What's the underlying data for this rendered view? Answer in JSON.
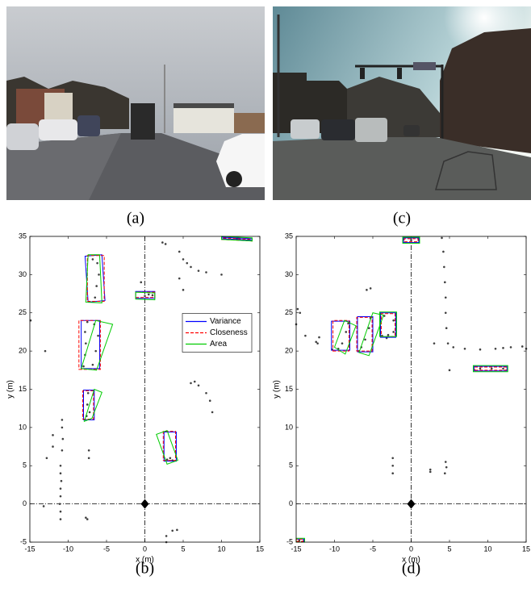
{
  "images": [
    {
      "caption": "(a)"
    },
    {
      "caption": "(c)"
    }
  ],
  "chart_data": [
    {
      "type": "scatter",
      "caption": "(b)",
      "xlabel": "x (m)",
      "ylabel": "y (m)",
      "xlim": [
        -15,
        15
      ],
      "ylim": [
        -5,
        35
      ],
      "xticks": [
        -15,
        -10,
        -5,
        0,
        5,
        10,
        15
      ],
      "yticks": [
        -5,
        0,
        5,
        10,
        15,
        20,
        25,
        30,
        35
      ],
      "legend": "center right",
      "points": {
        "color": "#404040",
        "x": [
          -11,
          -11,
          -11.1,
          -11,
          -11,
          -10.9,
          -11,
          -11,
          -10.8,
          -10.7,
          -10.8,
          -10.8,
          -13.2,
          -12.8,
          -12,
          -12,
          -7.3,
          -7.3,
          -7.5,
          -7.7,
          -7.6,
          -7.5,
          -7.4,
          -7.2,
          -8,
          -7.8,
          -7.7,
          -7.8,
          -7.5,
          -6.8,
          -6.4,
          -6.1,
          -6.6,
          -13,
          -14.9,
          -6.5,
          -6.3,
          -6,
          -6.2,
          -6.8,
          0,
          0.5,
          1,
          -0.5,
          2.3,
          2.7,
          4.5,
          5,
          5.5,
          6,
          7,
          8,
          4.5,
          5,
          6,
          6.5,
          7,
          8,
          8.5,
          8.8,
          2.9,
          3.3,
          3.6,
          2.8,
          2.8,
          3.6,
          4.2,
          10.5,
          12,
          13.5,
          10
        ],
        "y": [
          -2,
          -1,
          0,
          1,
          2,
          3,
          4,
          5,
          7,
          8.5,
          10,
          11,
          -0.3,
          6,
          7.5,
          9,
          6,
          7,
          -2,
          -1.8,
          11.5,
          13,
          14.5,
          12,
          18,
          19.5,
          21,
          22.5,
          23.8,
          18.2,
          20,
          22,
          23.5,
          20,
          24,
          27,
          28.5,
          30,
          31.5,
          32,
          27.2,
          27.4,
          27.3,
          29,
          34.2,
          34,
          33,
          32,
          31.5,
          31,
          30.5,
          30.3,
          29.5,
          28,
          15.8,
          16,
          15.5,
          14.5,
          13.5,
          12,
          5.8,
          6,
          5.7,
          -4.2,
          -5,
          -3.5,
          -3.4,
          34.8,
          34.7,
          34.6,
          30
        ]
      },
      "series": [
        {
          "name": "Variance",
          "color": "#0000ff",
          "dash": false,
          "boxes": [
            {
              "x": [
                -7.4,
                -5.2,
                -5.6,
                -7.8
              ],
              "y": [
                26.4,
                26.6,
                32.6,
                32.4
              ]
            },
            {
              "x": [
                -8.3,
                -5.9,
                -5.9,
                -8.3
              ],
              "y": [
                17.7,
                17.7,
                24,
                24
              ]
            },
            {
              "x": [
                -8,
                -6.6,
                -6.6,
                -8
              ],
              "y": [
                11,
                11,
                14.9,
                14.9
              ]
            },
            {
              "x": [
                -1.2,
                1.3,
                1.3,
                -1.2
              ],
              "y": [
                26.9,
                26.9,
                27.8,
                27.8
              ]
            },
            {
              "x": [
                2.5,
                4.1,
                4.1,
                2.5
              ],
              "y": [
                5.6,
                5.6,
                9.4,
                9.4
              ]
            },
            {
              "x": [
                10,
                14,
                14,
                10
              ],
              "y": [
                34.7,
                34.5,
                34.7,
                34.9
              ]
            }
          ]
        },
        {
          "name": "Closeness",
          "color": "#ff0000",
          "dash": true,
          "boxes": [
            {
              "x": [
                -7.5,
                -5.3,
                -5.3,
                -7.5
              ],
              "y": [
                26.5,
                26.5,
                32.5,
                32.5
              ]
            },
            {
              "x": [
                -8.6,
                -5.8,
                -5.8,
                -8.6
              ],
              "y": [
                17.6,
                17.6,
                24,
                24
              ]
            },
            {
              "x": [
                -8.1,
                -6.7,
                -6.7,
                -8.1
              ],
              "y": [
                11.1,
                11.1,
                14.8,
                14.8
              ]
            },
            {
              "x": [
                -1.2,
                1.3,
                1.3,
                -1.2
              ],
              "y": [
                27,
                27,
                27.7,
                27.7
              ]
            },
            {
              "x": [
                2.4,
                4,
                4,
                2.4
              ],
              "y": [
                5.7,
                5.7,
                9.5,
                9.5
              ]
            },
            {
              "x": [
                10,
                14,
                14,
                10
              ],
              "y": [
                34.6,
                34.4,
                34.6,
                34.8
              ]
            }
          ]
        },
        {
          "name": "Area",
          "color": "#00cc00",
          "dash": false,
          "boxes": [
            {
              "x": [
                -7.7,
                -5.6,
                -5.9,
                -7.4
              ],
              "y": [
                26.4,
                26.3,
                32.6,
                32.6
              ]
            },
            {
              "x": [
                -8.3,
                -6.3,
                -4.2,
                -6.4
              ],
              "y": [
                17.7,
                17.5,
                23.5,
                24
              ]
            },
            {
              "x": [
                -7.9,
                -6.9,
                -5.6,
                -6.6
              ],
              "y": [
                10.8,
                11.2,
                14.6,
                15
              ]
            },
            {
              "x": [
                -1.2,
                1.3,
                1.3,
                -1.2
              ],
              "y": [
                26.8,
                26.7,
                27.6,
                27.7
              ]
            },
            {
              "x": [
                1.5,
                2.9,
                4.3,
                2.9
              ],
              "y": [
                9.1,
                5.2,
                5.7,
                9.6
              ]
            },
            {
              "x": [
                10,
                14,
                14,
                10
              ],
              "y": [
                34.6,
                34.4,
                34.8,
                35
              ]
            }
          ]
        }
      ]
    },
    {
      "type": "scatter",
      "caption": "(d)",
      "xlabel": "x (m)",
      "ylabel": "y (m)",
      "xlim": [
        -15,
        15
      ],
      "ylim": [
        -5,
        35
      ],
      "xticks": [
        -15,
        -10,
        -5,
        0,
        5,
        10,
        15
      ],
      "yticks": [
        -5,
        0,
        5,
        10,
        15,
        20,
        25,
        30,
        35
      ],
      "points": {
        "color": "#404040",
        "x": [
          -14.8,
          -14.5,
          -15,
          -13.8,
          -12.4,
          -12,
          -12.2,
          -10.3,
          -9.5,
          -9,
          -8.5,
          -8.2,
          -6.8,
          -6.5,
          -6,
          -5.5,
          -5.3,
          -3.8,
          -3,
          -2.3,
          -2.3,
          -3.5,
          -5.8,
          -5.3,
          -3.2,
          4,
          4.2,
          4.3,
          4.4,
          4.5,
          4.5,
          4.6,
          4.8,
          5.5,
          7,
          9,
          11,
          12,
          13,
          14.5,
          15,
          3,
          5,
          9,
          10.5,
          12,
          -2.4,
          -2.4,
          -2.4,
          2.5,
          2.5,
          4.4,
          4.6,
          4.5,
          0,
          -14.6
        ],
        "y": [
          25.5,
          25,
          23.5,
          22,
          21.2,
          21.8,
          21,
          20.2,
          20.3,
          21,
          22.5,
          23.6,
          20,
          20.5,
          21.5,
          23,
          24.3,
          22,
          22.1,
          22.5,
          24,
          24.6,
          28,
          28.2,
          21.7,
          34.8,
          33,
          31,
          29,
          27,
          25,
          23,
          21,
          20.5,
          20.3,
          20.2,
          20.3,
          20.4,
          20.5,
          20.6,
          20.3,
          21,
          17.5,
          17.7,
          17.7,
          17.7,
          4,
          5,
          6,
          4.2,
          4.5,
          4,
          4.8,
          5.5,
          34.5,
          -4.8
        ]
      },
      "series": [
        {
          "color": "#0000ff",
          "dash": false,
          "boxes": [
            {
              "x": [
                -10.4,
                -8,
                -8,
                -10.4
              ],
              "y": [
                20.1,
                20.1,
                23.9,
                23.9
              ]
            },
            {
              "x": [
                -7,
                -5,
                -5,
                -7
              ],
              "y": [
                19.9,
                19.9,
                24.5,
                24.5
              ]
            },
            {
              "x": [
                -4,
                -2,
                -2,
                -4
              ],
              "y": [
                21.8,
                21.8,
                25,
                25
              ]
            },
            {
              "x": [
                8.2,
                12.5,
                12.5,
                8.2
              ],
              "y": [
                17.4,
                17.4,
                18,
                18
              ]
            },
            {
              "x": [
                -1,
                1,
                1,
                -1
              ],
              "y": [
                34.2,
                34.2,
                34.8,
                34.8
              ]
            },
            {
              "x": [
                -15,
                -14,
                -14,
                -15
              ],
              "y": [
                -5,
                -5,
                -4.6,
                -4.6
              ]
            }
          ]
        },
        {
          "color": "#ff0000",
          "dash": true,
          "boxes": [
            {
              "x": [
                -10.2,
                -8.1,
                -8.1,
                -10.2
              ],
              "y": [
                20,
                20,
                24,
                24
              ]
            },
            {
              "x": [
                -7.1,
                -5.1,
                -5.1,
                -7.1
              ],
              "y": [
                20,
                20,
                24.4,
                24.4
              ]
            },
            {
              "x": [
                -3.9,
                -2.1,
                -2.1,
                -3.9
              ],
              "y": [
                21.9,
                21.9,
                24.9,
                24.9
              ]
            },
            {
              "x": [
                8.3,
                12.4,
                12.4,
                8.3
              ],
              "y": [
                17.5,
                17.5,
                17.9,
                17.9
              ]
            },
            {
              "x": [
                -0.9,
                0.9,
                0.9,
                -0.9
              ],
              "y": [
                34.3,
                34.3,
                34.7,
                34.7
              ]
            },
            {
              "x": [
                -15,
                -14.1,
                -14.1,
                -15
              ],
              "y": [
                -4.9,
                -4.9,
                -4.6,
                -4.6
              ]
            }
          ]
        },
        {
          "color": "#00cc00",
          "dash": false,
          "boxes": [
            {
              "x": [
                -10,
                -8.6,
                -7.2,
                -8.7
              ],
              "y": [
                20.5,
                19.6,
                23.3,
                24
              ]
            },
            {
              "x": [
                -6.8,
                -5.5,
                -3.6,
                -5
              ],
              "y": [
                19.8,
                19.4,
                24.7,
                25
              ]
            },
            {
              "x": [
                -4.1,
                -1.9,
                -1.9,
                -4.1
              ],
              "y": [
                21.9,
                21.9,
                25.1,
                25.1
              ]
            },
            {
              "x": [
                8.1,
                12.6,
                12.6,
                8.1
              ],
              "y": [
                17.3,
                17.3,
                18.1,
                18.1
              ]
            },
            {
              "x": [
                -1.1,
                1.1,
                1.1,
                -1.1
              ],
              "y": [
                34.1,
                34.1,
                34.9,
                34.9
              ]
            },
            {
              "x": [
                -15,
                -13.9,
                -13.9,
                -15
              ],
              "y": [
                -5,
                -5,
                -4.5,
                -4.5
              ]
            }
          ]
        }
      ]
    }
  ]
}
